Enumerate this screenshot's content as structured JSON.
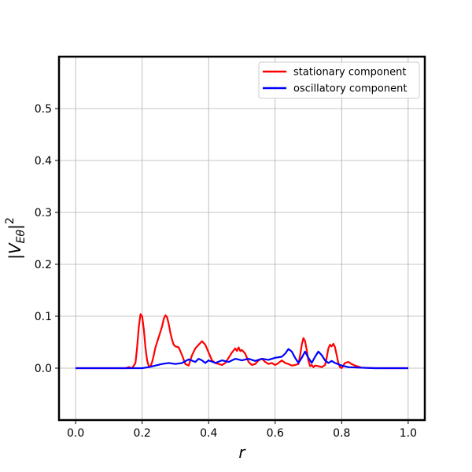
{
  "chart_data": {
    "type": "line",
    "xlabel": "r",
    "ylabel": "|V_Eθ|²",
    "xlim": [
      -0.05,
      1.05
    ],
    "ylim": [
      -0.1,
      0.6
    ],
    "xticks": [
      0.0,
      0.2,
      0.4,
      0.6,
      0.8,
      1.0
    ],
    "xtick_labels": [
      "0.0",
      "0.2",
      "0.4",
      "0.6",
      "0.8",
      "1.0"
    ],
    "yticks": [
      0.0,
      0.1,
      0.2,
      0.3,
      0.4,
      0.5
    ],
    "ytick_labels": [
      "0.0",
      "0.1",
      "0.2",
      "0.3",
      "0.4",
      "0.5"
    ],
    "grid": true,
    "legend_position": "top-right",
    "series": [
      {
        "name": "stationary component",
        "color": "#ff0000",
        "x": [
          0.0,
          0.15,
          0.16,
          0.17,
          0.18,
          0.185,
          0.19,
          0.195,
          0.2,
          0.205,
          0.21,
          0.215,
          0.22,
          0.225,
          0.23,
          0.235,
          0.24,
          0.25,
          0.26,
          0.265,
          0.27,
          0.275,
          0.28,
          0.285,
          0.29,
          0.295,
          0.3,
          0.31,
          0.32,
          0.33,
          0.34,
          0.35,
          0.36,
          0.37,
          0.38,
          0.39,
          0.4,
          0.41,
          0.42,
          0.43,
          0.44,
          0.45,
          0.46,
          0.47,
          0.48,
          0.485,
          0.49,
          0.495,
          0.5,
          0.51,
          0.52,
          0.53,
          0.54,
          0.55,
          0.56,
          0.57,
          0.58,
          0.59,
          0.6,
          0.61,
          0.62,
          0.63,
          0.64,
          0.65,
          0.66,
          0.67,
          0.675,
          0.68,
          0.685,
          0.69,
          0.695,
          0.7,
          0.705,
          0.71,
          0.715,
          0.72,
          0.73,
          0.74,
          0.75,
          0.755,
          0.76,
          0.765,
          0.77,
          0.775,
          0.78,
          0.785,
          0.79,
          0.795,
          0.8,
          0.805,
          0.81,
          0.82,
          0.83,
          0.84,
          0.85,
          0.86,
          0.9,
          1.0
        ],
        "y": [
          0.0,
          0.0,
          0.002,
          0.0,
          0.01,
          0.04,
          0.08,
          0.104,
          0.1,
          0.075,
          0.04,
          0.015,
          0.004,
          0.003,
          0.012,
          0.025,
          0.04,
          0.06,
          0.08,
          0.095,
          0.102,
          0.098,
          0.085,
          0.068,
          0.055,
          0.045,
          0.042,
          0.04,
          0.025,
          0.008,
          0.005,
          0.025,
          0.038,
          0.045,
          0.052,
          0.045,
          0.03,
          0.015,
          0.01,
          0.008,
          0.006,
          0.01,
          0.02,
          0.03,
          0.038,
          0.033,
          0.04,
          0.033,
          0.035,
          0.028,
          0.012,
          0.006,
          0.008,
          0.015,
          0.018,
          0.012,
          0.008,
          0.01,
          0.006,
          0.01,
          0.015,
          0.01,
          0.008,
          0.005,
          0.006,
          0.008,
          0.025,
          0.045,
          0.058,
          0.052,
          0.035,
          0.015,
          0.004,
          0.006,
          0.002,
          0.005,
          0.004,
          0.002,
          0.006,
          0.02,
          0.038,
          0.045,
          0.042,
          0.047,
          0.04,
          0.025,
          0.01,
          0.002,
          0.0,
          0.005,
          0.01,
          0.012,
          0.008,
          0.005,
          0.003,
          0.001,
          0.0,
          0.0
        ]
      },
      {
        "name": "oscillatory component",
        "color": "#0000ff",
        "x": [
          0.0,
          0.2,
          0.22,
          0.24,
          0.26,
          0.28,
          0.3,
          0.32,
          0.34,
          0.36,
          0.37,
          0.38,
          0.39,
          0.4,
          0.42,
          0.44,
          0.46,
          0.48,
          0.5,
          0.52,
          0.54,
          0.56,
          0.58,
          0.6,
          0.62,
          0.63,
          0.64,
          0.65,
          0.66,
          0.67,
          0.68,
          0.69,
          0.7,
          0.71,
          0.72,
          0.73,
          0.74,
          0.75,
          0.76,
          0.77,
          0.78,
          0.8,
          0.82,
          0.85,
          0.9,
          1.0
        ],
        "y": [
          0.0,
          0.0,
          0.002,
          0.005,
          0.008,
          0.01,
          0.008,
          0.01,
          0.017,
          0.012,
          0.018,
          0.015,
          0.01,
          0.015,
          0.01,
          0.015,
          0.012,
          0.018,
          0.015,
          0.018,
          0.014,
          0.018,
          0.016,
          0.02,
          0.022,
          0.028,
          0.037,
          0.032,
          0.02,
          0.01,
          0.02,
          0.032,
          0.02,
          0.01,
          0.022,
          0.032,
          0.025,
          0.015,
          0.01,
          0.014,
          0.01,
          0.005,
          0.002,
          0.001,
          0.0,
          0.0
        ]
      }
    ]
  }
}
